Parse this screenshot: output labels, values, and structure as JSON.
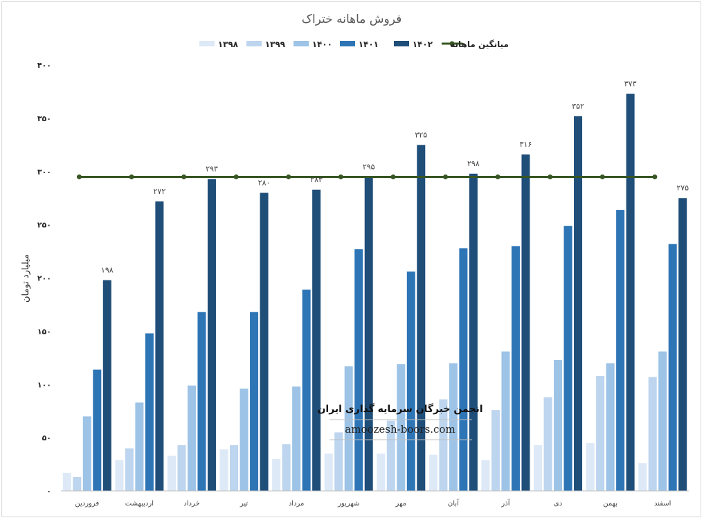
{
  "chart_data": {
    "type": "bar",
    "title": "فروش ماهانه ختراک",
    "ylabel": "میلیارد تومان",
    "ylim": [
      0,
      400
    ],
    "yticks": [
      "۰",
      "۵۰",
      "۱۰۰",
      "۱۵۰",
      "۲۰۰",
      "۲۵۰",
      "۳۰۰",
      "۳۵۰",
      "۴۰۰"
    ],
    "ytick_values": [
      0,
      50,
      100,
      150,
      200,
      250,
      300,
      350,
      400
    ],
    "categories": [
      "فروردین",
      "اردیبهشت",
      "خرداد",
      "تیر",
      "مرداد",
      "شهریور",
      "مهر",
      "آبان",
      "آذر",
      "دی",
      "بهمن",
      "اسفند"
    ],
    "series": [
      {
        "name": "۱۳۹۸",
        "color": "#dde9f6",
        "values": [
          17,
          29,
          33,
          39,
          30,
          35,
          35,
          34,
          29,
          43,
          45,
          26
        ]
      },
      {
        "name": "۱۳۹۹",
        "color": "#bdd5ee",
        "values": [
          13,
          40,
          43,
          43,
          44,
          55,
          66,
          86,
          76,
          88,
          108,
          107
        ]
      },
      {
        "name": "۱۴۰۰",
        "color": "#9dc3e6",
        "values": [
          70,
          83,
          99,
          96,
          98,
          117,
          119,
          120,
          131,
          123,
          120,
          131
        ]
      },
      {
        "name": "۱۴۰۱",
        "color": "#2e75b6",
        "values": [
          114,
          148,
          168,
          168,
          189,
          227,
          206,
          228,
          230,
          249,
          264,
          232
        ]
      },
      {
        "name": "۱۴۰۲",
        "color": "#1f4e79",
        "values": [
          198,
          272,
          293,
          280,
          283,
          295,
          325,
          298,
          316,
          352,
          373,
          275
        ]
      }
    ],
    "data_labels": [
      "۱۹۸",
      "۲۷۲",
      "۲۹۳",
      "۲۸۰",
      "۲۸۳",
      "۲۹۵",
      "۳۲۵",
      "۲۹۸",
      "۳۱۶",
      "۳۵۲",
      "۳۷۳",
      "۲۷۵"
    ],
    "average_line": {
      "name": "میانگین ماهانه",
      "color": "#375623",
      "value": 295
    },
    "legend_position": "top",
    "grid": false
  },
  "watermark": {
    "title": "انجمن خبرگان سرمایه گذاری ایران",
    "url": "amoozesh-boors.com"
  }
}
